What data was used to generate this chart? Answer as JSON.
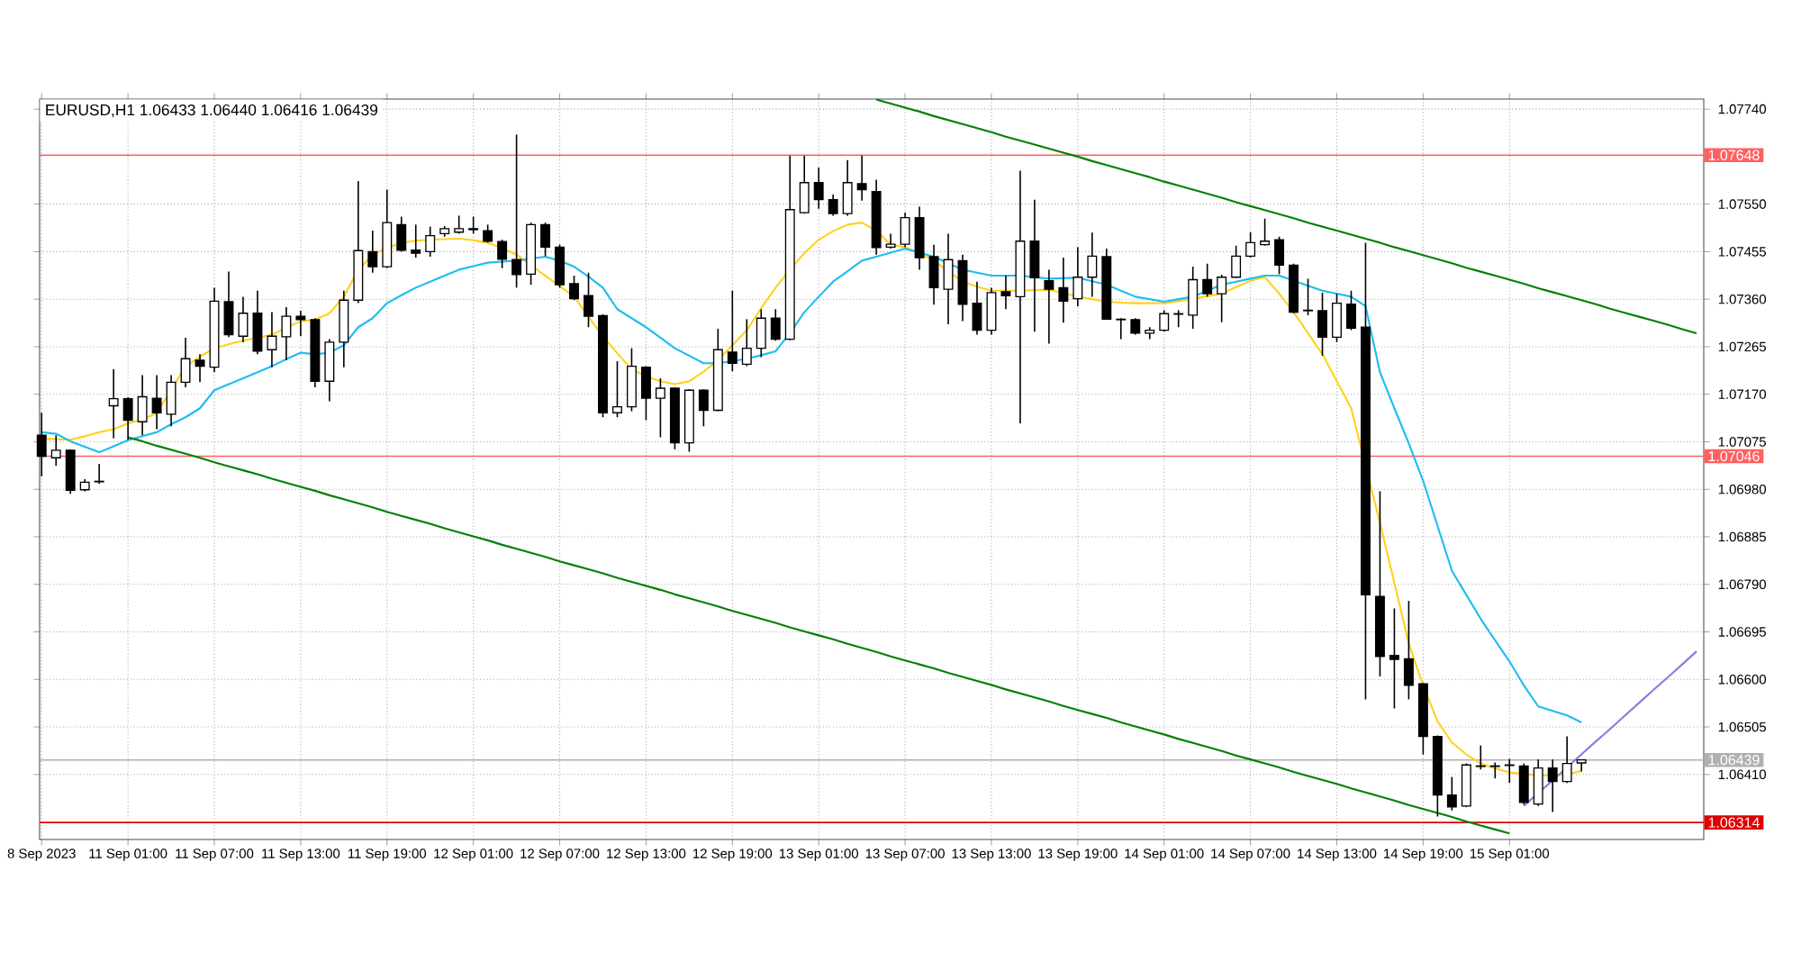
{
  "chart_data": {
    "type": "candlestick",
    "title": "EURUSD,H1 1.06433 1.06440 1.06416 1.06439",
    "color": "#000000",
    "grid": true,
    "categories": [
      "8 Sep 2023",
      null,
      null,
      null,
      null,
      null,
      "11 Sep 01:00",
      null,
      null,
      null,
      null,
      null,
      "11 Sep 07:00",
      null,
      null,
      null,
      null,
      null,
      "11 Sep 13:00",
      null,
      null,
      null,
      null,
      null,
      "11 Sep 19:00",
      null,
      null,
      null,
      null,
      null,
      "12 Sep 01:00",
      null,
      null,
      null,
      null,
      null,
      "12 Sep 07:00",
      null,
      null,
      null,
      null,
      null,
      "12 Sep 13:00",
      null,
      null,
      null,
      null,
      null,
      "12 Sep 19:00",
      null,
      null,
      null,
      null,
      null,
      "13 Sep 01:00",
      null,
      null,
      null,
      null,
      null,
      "13 Sep 07:00",
      null,
      null,
      null,
      null,
      null,
      "13 Sep 13:00",
      null,
      null,
      null,
      null,
      null,
      "13 Sep 19:00",
      null,
      null,
      null,
      null,
      null,
      "14 Sep 01:00",
      null,
      null,
      null,
      null,
      null,
      "14 Sep 07:00",
      null,
      null,
      null,
      null,
      null,
      "14 Sep 13:00",
      null,
      null,
      null,
      null,
      null,
      "14 Sep 19:00",
      null,
      null,
      null,
      null,
      null,
      "15 Sep 01:00",
      null,
      null,
      null,
      null,
      null,
      null,
      null,
      null,
      null,
      null,
      null,
      null,
      null
    ],
    "ohlc": [
      [
        1.07088,
        1.07133,
        1.07006,
        1.07046
      ],
      [
        1.07043,
        1.07088,
        1.07027,
        1.07058
      ],
      [
        1.07058,
        1.0706,
        1.06971,
        1.06978
      ],
      [
        1.06979,
        1.07,
        1.06976,
        1.06994
      ],
      [
        1.06995,
        1.07031,
        1.06991,
        1.06996
      ],
      [
        1.07147,
        1.0722,
        1.07082,
        1.07161
      ],
      [
        1.07161,
        1.07164,
        1.07079,
        1.07118
      ],
      [
        1.07115,
        1.07208,
        1.07088,
        1.07165
      ],
      [
        1.07162,
        1.07208,
        1.071,
        1.07133
      ],
      [
        1.0713,
        1.07208,
        1.07106,
        1.07194
      ],
      [
        1.07194,
        1.07283,
        1.07184,
        1.07241
      ],
      [
        1.07238,
        1.0725,
        1.07194,
        1.07226
      ],
      [
        1.07224,
        1.07383,
        1.07214,
        1.07356
      ],
      [
        1.07355,
        1.07415,
        1.07284,
        1.07289
      ],
      [
        1.07286,
        1.07365,
        1.07274,
        1.07332
      ],
      [
        1.07332,
        1.07377,
        1.0725,
        1.07256
      ],
      [
        1.07259,
        1.07334,
        1.07224,
        1.07286
      ],
      [
        1.07285,
        1.07344,
        1.07238,
        1.07326
      ],
      [
        1.07326,
        1.07337,
        1.07286,
        1.07319
      ],
      [
        1.07319,
        1.07322,
        1.07184,
        1.07196
      ],
      [
        1.07196,
        1.0728,
        1.07156,
        1.07274
      ],
      [
        1.07274,
        1.07377,
        1.07224,
        1.07358
      ],
      [
        1.07358,
        1.07596,
        1.07352,
        1.07457
      ],
      [
        1.07455,
        1.07497,
        1.07413,
        1.07425
      ],
      [
        1.07425,
        1.07579,
        1.07422,
        1.07513
      ],
      [
        1.07509,
        1.07525,
        1.07455,
        1.07458
      ],
      [
        1.07458,
        1.07509,
        1.07443,
        1.07452
      ],
      [
        1.07455,
        1.07505,
        1.07445,
        1.07487
      ],
      [
        1.07491,
        1.07506,
        1.07485,
        1.07501
      ],
      [
        1.07494,
        1.07527,
        1.07491,
        1.07501
      ],
      [
        1.07499,
        1.07525,
        1.07491,
        1.07501
      ],
      [
        1.07497,
        1.07509,
        1.07473,
        1.07476
      ],
      [
        1.07475,
        1.07479,
        1.07422,
        1.0744
      ],
      [
        1.07439,
        1.07689,
        1.07383,
        1.07409
      ],
      [
        1.0741,
        1.07513,
        1.07389,
        1.07509
      ],
      [
        1.07509,
        1.07513,
        1.07446,
        1.07464
      ],
      [
        1.07464,
        1.07469,
        1.07383,
        1.07389
      ],
      [
        1.07391,
        1.07407,
        1.07358,
        1.07361
      ],
      [
        1.07367,
        1.07413,
        1.07304,
        1.07326
      ],
      [
        1.07327,
        1.0733,
        1.07124,
        1.07133
      ],
      [
        1.07133,
        1.07236,
        1.07124,
        1.07145
      ],
      [
        1.07145,
        1.07262,
        1.07136,
        1.07226
      ],
      [
        1.07224,
        1.07226,
        1.07118,
        1.07162
      ],
      [
        1.07162,
        1.07202,
        1.07084,
        1.07182
      ],
      [
        1.07182,
        1.07184,
        1.0706,
        1.07073
      ],
      [
        1.07073,
        1.0718,
        1.07055,
        1.07178
      ],
      [
        1.07178,
        1.0718,
        1.07106,
        1.07138
      ],
      [
        1.07138,
        1.07301,
        1.07136,
        1.07259
      ],
      [
        1.07254,
        1.07377,
        1.07216,
        1.07232
      ],
      [
        1.0723,
        1.0732,
        1.07226,
        1.07262
      ],
      [
        1.07262,
        1.0734,
        1.07244,
        1.07322
      ],
      [
        1.07322,
        1.0734,
        1.07277,
        1.0728
      ],
      [
        1.0728,
        1.07647,
        1.07278,
        1.07539
      ],
      [
        1.07533,
        1.07647,
        1.07531,
        1.07593
      ],
      [
        1.07593,
        1.07623,
        1.07541,
        1.07559
      ],
      [
        1.07559,
        1.07569,
        1.07527,
        1.07531
      ],
      [
        1.07531,
        1.07638,
        1.07527,
        1.07593
      ],
      [
        1.07591,
        1.07647,
        1.07557,
        1.07579
      ],
      [
        1.07575,
        1.07599,
        1.07449,
        1.07463
      ],
      [
        1.07464,
        1.07491,
        1.07461,
        1.0747
      ],
      [
        1.0747,
        1.07533,
        1.07464,
        1.07523
      ],
      [
        1.07523,
        1.07545,
        1.07419,
        1.07443
      ],
      [
        1.07445,
        1.07469,
        1.07349,
        1.07383
      ],
      [
        1.0738,
        1.07491,
        1.0731,
        1.07439
      ],
      [
        1.07437,
        1.07449,
        1.07316,
        1.0735
      ],
      [
        1.07352,
        1.07395,
        1.07289,
        1.07298
      ],
      [
        1.07298,
        1.07383,
        1.07289,
        1.07373
      ],
      [
        1.07375,
        1.07407,
        1.0734,
        1.07367
      ],
      [
        1.07365,
        1.07617,
        1.07112,
        1.07476
      ],
      [
        1.07476,
        1.07559,
        1.07295,
        1.07403
      ],
      [
        1.07397,
        1.07419,
        1.07271,
        1.0738
      ],
      [
        1.07383,
        1.07443,
        1.07313,
        1.07356
      ],
      [
        1.07361,
        1.07464,
        1.07346,
        1.07404
      ],
      [
        1.07404,
        1.07493,
        1.07365,
        1.07446
      ],
      [
        1.07445,
        1.07461,
        1.07319,
        1.0732
      ],
      [
        1.0732,
        1.07322,
        1.0728,
        1.07319
      ],
      [
        1.07319,
        1.07322,
        1.07289,
        1.07292
      ],
      [
        1.07292,
        1.07304,
        1.0728,
        1.07298
      ],
      [
        1.07298,
        1.07338,
        1.07295,
        1.07331
      ],
      [
        1.0733,
        1.07338,
        1.07304,
        1.07331
      ],
      [
        1.07328,
        1.07425,
        1.07301,
        1.07399
      ],
      [
        1.07399,
        1.07431,
        1.07365,
        1.07371
      ],
      [
        1.07371,
        1.07409,
        1.07314,
        1.07404
      ],
      [
        1.07404,
        1.07467,
        1.07403,
        1.07446
      ],
      [
        1.07446,
        1.07494,
        1.07443,
        1.07473
      ],
      [
        1.07469,
        1.07521,
        1.07467,
        1.07476
      ],
      [
        1.07479,
        1.07485,
        1.0741,
        1.07428
      ],
      [
        1.07428,
        1.07431,
        1.07332,
        1.07334
      ],
      [
        1.07338,
        1.07401,
        1.07328,
        1.07337
      ],
      [
        1.07337,
        1.07373,
        1.07247,
        1.07284
      ],
      [
        1.07284,
        1.07371,
        1.07274,
        1.07352
      ],
      [
        1.0735,
        1.07377,
        1.07298,
        1.07302
      ],
      [
        1.07304,
        1.07473,
        1.0656,
        1.06769
      ],
      [
        1.06766,
        1.06976,
        1.06606,
        1.06646
      ],
      [
        1.06648,
        1.06742,
        1.06542,
        1.0664
      ],
      [
        1.06641,
        1.06757,
        1.0656,
        1.06588
      ],
      [
        1.06591,
        1.06593,
        1.0645,
        1.06486
      ],
      [
        1.06486,
        1.06488,
        1.06326,
        1.06369
      ],
      [
        1.06369,
        1.06405,
        1.06338,
        1.06345
      ],
      [
        1.06347,
        1.06432,
        1.06345,
        1.06429
      ],
      [
        1.06426,
        1.06468,
        1.0642,
        1.06427
      ],
      [
        1.06427,
        1.06434,
        1.06402,
        1.06426
      ],
      [
        1.06428,
        1.06441,
        1.06393,
        1.06429
      ],
      [
        1.06427,
        1.06432,
        1.0635,
        1.06354
      ],
      [
        1.06351,
        1.0644,
        1.06347,
        1.06423
      ],
      [
        1.06423,
        1.0644,
        1.06335,
        1.06396
      ],
      [
        1.06396,
        1.06486,
        1.06393,
        1.06432
      ],
      [
        1.06433,
        1.0644,
        1.06416,
        1.06439
      ],
      null,
      null,
      null,
      null,
      null,
      null,
      null,
      null
    ],
    "series": [
      {
        "type": "line",
        "color": "#ffd21e",
        "values": [
          1.07082,
          1.0708,
          1.07079,
          1.07086,
          1.07094,
          1.071,
          1.07112,
          1.0712,
          1.07132,
          null,
          1.07226,
          1.07245,
          1.07262,
          1.0727,
          1.07277,
          1.07283,
          1.07289,
          1.07303,
          1.07316,
          1.07319,
          1.07332,
          1.07365,
          1.07419,
          1.07449,
          1.07462,
          1.07473,
          1.07477,
          1.07479,
          1.0748,
          1.07481,
          1.07478,
          1.07473,
          1.07462,
          1.07449,
          1.07428,
          1.07407,
          1.07386,
          1.07365,
          1.07325,
          1.07286,
          1.07252,
          1.0722,
          1.07206,
          1.07196,
          1.0719,
          1.07196,
          1.07215,
          1.07238,
          1.07268,
          1.07298,
          1.07342,
          1.07383,
          1.07419,
          1.07452,
          1.07479,
          1.07496,
          1.07509,
          1.07513,
          1.07497,
          1.07469,
          1.07464,
          1.07452,
          1.07437,
          1.07416,
          1.07395,
          1.07385,
          1.07377,
          1.07377,
          1.07377,
          1.07378,
          1.07379,
          1.07372,
          1.07365,
          1.0736,
          1.07355,
          1.07353,
          1.07352,
          1.07352,
          1.07352,
          1.07356,
          1.07361,
          1.07366,
          1.07371,
          1.07384,
          1.07397,
          1.07404,
          1.07371,
          1.07334,
          1.07292,
          1.0725,
          1.07196,
          1.07142,
          null,
          1.06913,
          1.06793,
          1.06672,
          1.06588,
          1.06516,
          1.06474,
          1.0645,
          1.06432,
          1.06422,
          1.06414,
          1.06411,
          1.06408,
          1.06409,
          1.0641,
          1.06417,
          null,
          null,
          null,
          null,
          null,
          null,
          null,
          null
        ]
      },
      {
        "type": "line",
        "color": "#1ebdf0",
        "values": [
          1.07094,
          1.07091,
          1.07076,
          1.07065,
          1.07054,
          1.07066,
          1.07078,
          1.07086,
          1.07094,
          1.0711,
          1.07124,
          1.07142,
          1.07178,
          1.0719,
          1.07202,
          1.07214,
          1.07226,
          1.0724,
          1.07253,
          1.0725,
          1.07253,
          1.07268,
          1.07304,
          1.07322,
          1.07352,
          1.07368,
          1.07383,
          1.07395,
          1.07407,
          1.07419,
          1.07426,
          1.07433,
          1.07435,
          1.07437,
          1.07441,
          1.07445,
          1.07437,
          1.07425,
          1.07405,
          1.07383,
          1.0734,
          1.07322,
          1.07304,
          1.07283,
          1.07262,
          1.07247,
          1.07232,
          1.07232,
          1.07236,
          1.07241,
          1.07248,
          1.07256,
          1.07292,
          1.07334,
          1.07365,
          1.07395,
          1.07416,
          1.07437,
          1.07445,
          1.07453,
          1.07461,
          1.07453,
          1.07445,
          1.07432,
          1.07419,
          1.07413,
          1.07407,
          1.07407,
          1.07407,
          1.07404,
          1.07401,
          1.07402,
          1.07403,
          1.07396,
          1.07389,
          1.07377,
          1.07365,
          1.0736,
          1.07355,
          1.0736,
          1.07365,
          1.07377,
          1.07389,
          1.07395,
          1.07401,
          1.07407,
          1.07407,
          1.07397,
          1.07387,
          1.07377,
          1.07371,
          1.07365,
          1.07346,
          1.07214,
          1.07142,
          1.07072,
          1.06997,
          1.06907,
          1.06817,
          1.06769,
          1.06721,
          1.06678,
          1.06636,
          1.06588,
          1.06546,
          1.06537,
          1.06528,
          1.06514,
          null,
          null,
          null,
          null,
          null,
          null,
          null,
          null
        ]
      },
      {
        "type": "line",
        "color": "#008000",
        "values": [
          null,
          null,
          null,
          null,
          null,
          null,
          null,
          null,
          null,
          null,
          null,
          null,
          null,
          null,
          null,
          null,
          null,
          null,
          null,
          null,
          null,
          null,
          null,
          null,
          null,
          null,
          null,
          null,
          null,
          null,
          null,
          null,
          null,
          null,
          null,
          null,
          null,
          null,
          null,
          null,
          null,
          null,
          null,
          null,
          null,
          null,
          null,
          null,
          null,
          null,
          null,
          null,
          null,
          null,
          null,
          null,
          null,
          null,
          1.07759,
          1.07751,
          1.07743,
          1.07735,
          1.07726,
          1.07718,
          1.0771,
          1.07702,
          1.07694,
          1.07685,
          1.07677,
          1.07669,
          1.07661,
          1.07653,
          1.07645,
          1.07636,
          1.07628,
          1.0762,
          1.07612,
          1.07604,
          1.07595,
          1.07587,
          1.07579,
          1.07571,
          1.07563,
          1.07554,
          1.07546,
          1.07538,
          1.0753,
          1.07522,
          1.07513,
          1.07505,
          1.07497,
          1.07489,
          1.07481,
          1.07473,
          1.07464,
          1.07456,
          1.07448,
          1.0744,
          1.07432,
          1.07423,
          1.07415,
          1.07407,
          1.07399,
          1.07391,
          1.07382,
          1.07374,
          1.07366,
          1.07358,
          1.0735,
          1.07341,
          1.07333,
          1.07325,
          1.07317,
          1.07309,
          1.073,
          1.07292
        ]
      },
      {
        "type": "line",
        "color": "#008000",
        "values": [
          null,
          null,
          null,
          null,
          null,
          null,
          1.07084,
          1.07076,
          1.07067,
          1.07059,
          1.07051,
          1.07043,
          1.07034,
          1.07026,
          1.07018,
          1.0701,
          1.07001,
          1.06993,
          1.06985,
          1.06977,
          1.06968,
          1.0696,
          1.06952,
          1.06944,
          1.06935,
          1.06927,
          1.06919,
          1.06911,
          1.06902,
          1.06894,
          1.06886,
          1.06878,
          1.06869,
          1.06861,
          1.06853,
          1.06845,
          1.06836,
          1.06828,
          1.0682,
          1.06812,
          1.06803,
          1.06795,
          1.06787,
          1.06779,
          1.0677,
          1.06762,
          1.06754,
          1.06746,
          1.06737,
          1.06729,
          1.06721,
          1.06713,
          1.06704,
          1.06696,
          1.06688,
          1.0668,
          1.06671,
          1.06663,
          1.06655,
          1.06646,
          1.06638,
          1.0663,
          1.06622,
          1.06613,
          1.06605,
          1.06597,
          1.06589,
          1.0658,
          1.06572,
          1.06564,
          1.06556,
          1.06547,
          1.06539,
          1.06531,
          1.06523,
          1.06514,
          1.06506,
          1.06498,
          1.0649,
          1.06481,
          1.06473,
          1.06465,
          1.06457,
          1.06448,
          1.0644,
          1.06432,
          1.06424,
          1.06415,
          1.06407,
          1.06399,
          1.06391,
          1.06382,
          1.06374,
          1.06366,
          1.06358,
          1.06349,
          1.06341,
          1.06333,
          1.06325,
          1.06316,
          1.06308,
          1.063,
          1.06292,
          null,
          null,
          null,
          null,
          null,
          null,
          null,
          null,
          null,
          null,
          null,
          null,
          null
        ]
      },
      {
        "type": "line",
        "color": "#8080e0",
        "values": [
          null,
          null,
          null,
          null,
          null,
          null,
          null,
          null,
          null,
          null,
          null,
          null,
          null,
          null,
          null,
          null,
          null,
          null,
          null,
          null,
          null,
          null,
          null,
          null,
          null,
          null,
          null,
          null,
          null,
          null,
          null,
          null,
          null,
          null,
          null,
          null,
          null,
          null,
          null,
          null,
          null,
          null,
          null,
          null,
          null,
          null,
          null,
          null,
          null,
          null,
          null,
          null,
          null,
          null,
          null,
          null,
          null,
          null,
          null,
          null,
          null,
          null,
          null,
          null,
          null,
          null,
          null,
          null,
          null,
          null,
          null,
          null,
          null,
          null,
          null,
          null,
          null,
          null,
          null,
          null,
          null,
          null,
          null,
          null,
          null,
          null,
          null,
          null,
          null,
          null,
          null,
          null,
          null,
          null,
          null,
          null,
          null,
          null,
          null,
          null,
          null,
          null,
          null,
          1.06347,
          1.06373,
          1.06398,
          1.06424,
          1.0645,
          1.06476,
          1.06501,
          1.06527,
          1.06553,
          1.06579,
          1.06604,
          1.0663,
          1.06656
        ]
      }
    ],
    "ylim": [
      1.0628,
      1.0776
    ],
    "yticks": [
      {
        "value": 1.0774,
        "label": "1.07740"
      },
      {
        "value": 1.0755,
        "label": "1.07550"
      },
      {
        "value": 1.07455,
        "label": "1.07455"
      },
      {
        "value": 1.0736,
        "label": "1.07360"
      },
      {
        "value": 1.07265,
        "label": "1.07265"
      },
      {
        "value": 1.0717,
        "label": "1.07170"
      },
      {
        "value": 1.07075,
        "label": "1.07075"
      },
      {
        "value": 1.0698,
        "label": "1.06980"
      },
      {
        "value": 1.06885,
        "label": "1.06885"
      },
      {
        "value": 1.0679,
        "label": "1.06790"
      },
      {
        "value": 1.06695,
        "label": "1.06695"
      },
      {
        "value": 1.066,
        "label": "1.06600"
      },
      {
        "value": 1.06505,
        "label": "1.06505"
      },
      {
        "value": 1.0641,
        "label": "1.06410"
      }
    ],
    "ref_lines": [
      {
        "axis": "y",
        "value": 1.07648,
        "label": "1.07648",
        "color": "#ff6060"
      },
      {
        "axis": "y",
        "value": 1.07046,
        "label": "1.07046",
        "color": "#ff6060"
      },
      {
        "axis": "y",
        "value": 1.06314,
        "label": "1.06314",
        "color": "#e00000"
      },
      {
        "axis": "y",
        "value": 1.06439,
        "label": "1.06439",
        "color": "#b0b0b0"
      }
    ]
  }
}
